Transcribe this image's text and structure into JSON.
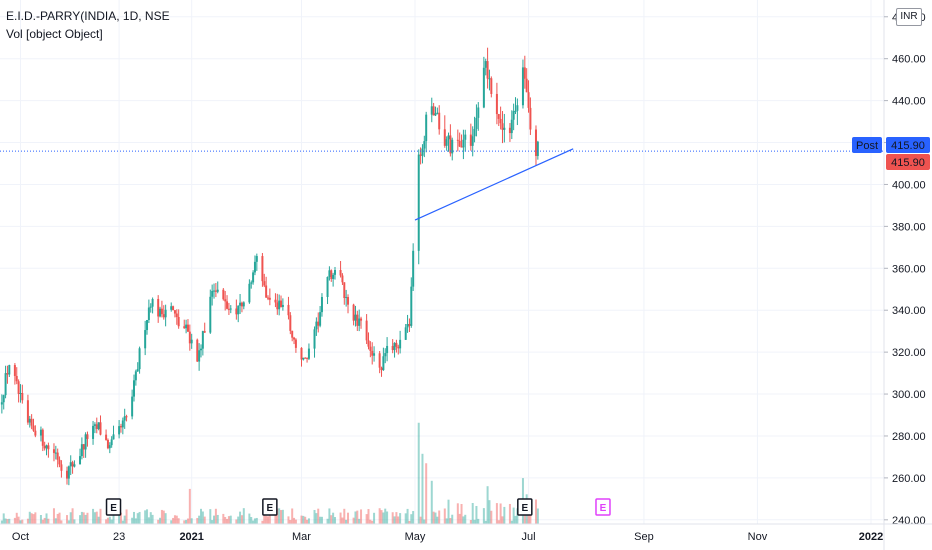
{
  "header": {
    "symbol_line": "E.I.D.-PARRY(INDIA, 1D, NSE",
    "volume_line": "Vol [object Object]",
    "currency": "INR"
  },
  "colors": {
    "up": "#26a69a",
    "down": "#ef5350",
    "price_line": "#2962ff",
    "trendline": "#2962ff",
    "post_badge": "#2962ff",
    "last_badge": "#ef5350",
    "event_dark": "#131722",
    "event_pink": "#e040fb"
  },
  "price_labels": {
    "post_label": "Post",
    "post_value": "415.90",
    "last_value": "415.90"
  },
  "events": [
    {
      "label": "E",
      "date": "2020-11-20",
      "style": "dark"
    },
    {
      "label": "E",
      "date": "2021-02-12",
      "style": "dark"
    },
    {
      "label": "E",
      "date": "2021-06-29",
      "style": "dark"
    },
    {
      "label": "E",
      "date": "2021-08-10",
      "style": "pink"
    }
  ],
  "chart_data": {
    "type": "candlestick",
    "symbol": "E.I.D.-PARRY(INDIA",
    "interval": "1D",
    "exchange": "NSE",
    "x_range": [
      "2020-09-20",
      "2022-01-08"
    ],
    "ylim": [
      238,
      488
    ],
    "y_ticks": [
      "240.00",
      "260.00",
      "280.00",
      "300.00",
      "320.00",
      "340.00",
      "360.00",
      "380.00",
      "400.00",
      "420.00",
      "440.00",
      "460.00",
      "480.00"
    ],
    "x_tick_labels": [
      {
        "date": "2020-10-01",
        "label": "Oct"
      },
      {
        "date": "2020-11-23",
        "label": "23"
      },
      {
        "date": "2021-01-01",
        "label": "2021"
      },
      {
        "date": "2021-03-01",
        "label": "Mar"
      },
      {
        "date": "2021-05-01",
        "label": "May"
      },
      {
        "date": "2021-07-01",
        "label": "Jul"
      },
      {
        "date": "2021-09-01",
        "label": "Sep"
      },
      {
        "date": "2021-11-01",
        "label": "Nov"
      },
      {
        "date": "2022-01-01",
        "label": "2022"
      }
    ],
    "grid": true,
    "last_price": 415.9,
    "trendline": [
      {
        "date": "2021-05-01",
        "price": 383
      },
      {
        "date": "2021-07-25",
        "price": 417
      }
    ],
    "price_path": [
      [
        "2020-09-20",
        295
      ],
      [
        "2020-09-25",
        315
      ],
      [
        "2020-09-30",
        300
      ],
      [
        "2020-10-05",
        285
      ],
      [
        "2020-10-10",
        283
      ],
      [
        "2020-10-15",
        275
      ],
      [
        "2020-10-20",
        272
      ],
      [
        "2020-10-25",
        262
      ],
      [
        "2020-11-01",
        270
      ],
      [
        "2020-11-06",
        280
      ],
      [
        "2020-11-12",
        284
      ],
      [
        "2020-11-18",
        274
      ],
      [
        "2020-11-23",
        282
      ],
      [
        "2020-11-28",
        290
      ],
      [
        "2020-12-02",
        308
      ],
      [
        "2020-12-06",
        330
      ],
      [
        "2020-12-10",
        345
      ],
      [
        "2020-12-15",
        338
      ],
      [
        "2020-12-20",
        343
      ],
      [
        "2020-12-25",
        333
      ],
      [
        "2020-12-30",
        330
      ],
      [
        "2021-01-04",
        316
      ],
      [
        "2021-01-08",
        330
      ],
      [
        "2021-01-12",
        352
      ],
      [
        "2021-01-17",
        345
      ],
      [
        "2021-01-22",
        340
      ],
      [
        "2021-01-27",
        342
      ],
      [
        "2021-02-01",
        350
      ],
      [
        "2021-02-05",
        365
      ],
      [
        "2021-02-10",
        348
      ],
      [
        "2021-02-15",
        342
      ],
      [
        "2021-02-20",
        343
      ],
      [
        "2021-02-25",
        325
      ],
      [
        "2021-03-02",
        315
      ],
      [
        "2021-03-06",
        320
      ],
      [
        "2021-03-10",
        335
      ],
      [
        "2021-03-15",
        355
      ],
      [
        "2021-03-20",
        360
      ],
      [
        "2021-03-25",
        345
      ],
      [
        "2021-03-30",
        335
      ],
      [
        "2021-04-04",
        330
      ],
      [
        "2021-04-08",
        320
      ],
      [
        "2021-04-12",
        310
      ],
      [
        "2021-04-16",
        320
      ],
      [
        "2021-04-20",
        325
      ],
      [
        "2021-04-24",
        322
      ],
      [
        "2021-04-28",
        335
      ],
      [
        "2021-05-01",
        385
      ],
      [
        "2021-05-03",
        410
      ],
      [
        "2021-05-06",
        425
      ],
      [
        "2021-05-10",
        440
      ],
      [
        "2021-05-15",
        425
      ],
      [
        "2021-05-20",
        418
      ],
      [
        "2021-05-25",
        422
      ],
      [
        "2021-05-30",
        418
      ],
      [
        "2021-06-04",
        440
      ],
      [
        "2021-06-08",
        455
      ],
      [
        "2021-06-12",
        440
      ],
      [
        "2021-06-16",
        430
      ],
      [
        "2021-06-20",
        425
      ],
      [
        "2021-06-25",
        440
      ],
      [
        "2021-06-28",
        460
      ],
      [
        "2021-07-01",
        432
      ],
      [
        "2021-07-04",
        418
      ],
      [
        "2021-07-06",
        416
      ]
    ],
    "volume_spikes": [
      {
        "date": "2020-12-31",
        "value": 0.26,
        "dir": "down"
      },
      {
        "date": "2021-05-01",
        "value": 1.0,
        "dir": "up"
      },
      {
        "date": "2021-05-03",
        "value": 0.75,
        "dir": "up"
      },
      {
        "date": "2021-05-05",
        "value": 0.52,
        "dir": "up"
      },
      {
        "date": "2021-05-07",
        "value": 0.45,
        "dir": "down"
      },
      {
        "date": "2021-05-10",
        "value": 0.32,
        "dir": "up"
      },
      {
        "date": "2021-06-09",
        "value": 0.28,
        "dir": "up"
      },
      {
        "date": "2021-06-28",
        "value": 0.34,
        "dir": "up"
      },
      {
        "date": "2021-06-30",
        "value": 0.22,
        "dir": "up"
      }
    ]
  }
}
